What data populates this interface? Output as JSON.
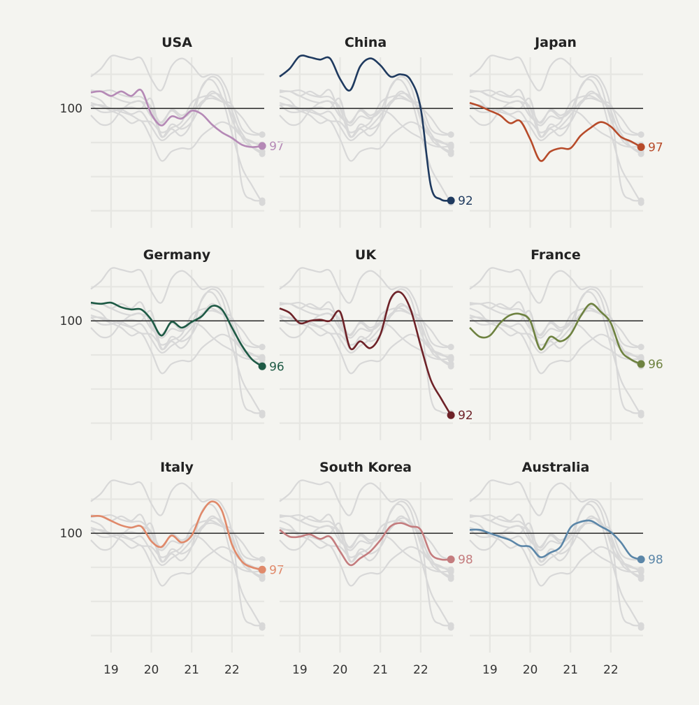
{
  "chart_data": {
    "type": "line",
    "layout": "small-multiples-3x3",
    "title": "",
    "xlabel": "",
    "ylabel": "",
    "x_ticks": [
      "19",
      "20",
      "21",
      "22"
    ],
    "y_reference": 100,
    "y_ticks": [
      "100"
    ],
    "xlim": [
      2018.5,
      2022.8
    ],
    "ylim": [
      89.5,
      104.5
    ],
    "grid": true,
    "background_series_color": "#d8d8d8",
    "x": [
      2018.5,
      2018.75,
      2019.0,
      2019.25,
      2019.5,
      2019.75,
      2020.0,
      2020.25,
      2020.5,
      2020.75,
      2021.0,
      2021.25,
      2021.5,
      2021.75,
      2022.0,
      2022.25,
      2022.5,
      2022.75
    ],
    "series": [
      {
        "name": "USA",
        "color": "#b589b6",
        "end_label": "97",
        "values": [
          101.4,
          101.5,
          101.1,
          101.5,
          101.1,
          101.6,
          99.5,
          98.5,
          99.3,
          99.1,
          99.8,
          99.5,
          98.6,
          97.9,
          97.4,
          96.8,
          96.6,
          96.7
        ]
      },
      {
        "name": "China",
        "color": "#1f3a5f",
        "end_label": "92",
        "values": [
          102.8,
          103.5,
          104.6,
          104.5,
          104.3,
          104.4,
          102.6,
          101.6,
          103.7,
          104.4,
          103.8,
          102.8,
          103.0,
          102.5,
          100.0,
          93.2,
          92.0,
          91.9
        ]
      },
      {
        "name": "Japan",
        "color": "#b74b2a",
        "end_label": "97",
        "values": [
          100.5,
          100.2,
          99.8,
          99.4,
          98.7,
          98.9,
          97.3,
          95.4,
          96.2,
          96.5,
          96.5,
          97.6,
          98.3,
          98.8,
          98.4,
          97.5,
          97.1,
          96.6
        ]
      },
      {
        "name": "Germany",
        "color": "#1e5a45",
        "end_label": "96",
        "values": [
          101.6,
          101.5,
          101.6,
          101.2,
          101.0,
          101.0,
          100.1,
          98.7,
          99.9,
          99.4,
          99.9,
          100.4,
          101.3,
          101.0,
          99.4,
          97.8,
          96.6,
          96.0
        ]
      },
      {
        "name": "UK",
        "color": "#6e2228",
        "end_label": "92",
        "values": [
          101.1,
          100.7,
          99.8,
          100.0,
          100.1,
          100.0,
          100.8,
          97.6,
          98.2,
          97.6,
          98.8,
          101.9,
          102.5,
          101.0,
          97.8,
          94.8,
          93.2,
          91.7
        ]
      },
      {
        "name": "France",
        "color": "#6e8240",
        "end_label": "96",
        "values": [
          99.4,
          98.6,
          98.7,
          99.8,
          100.5,
          100.6,
          100.0,
          97.5,
          98.6,
          98.2,
          98.8,
          100.4,
          101.5,
          100.8,
          99.8,
          97.4,
          96.6,
          96.2
        ]
      },
      {
        "name": "Italy",
        "color": "#e0896a",
        "end_label": "97",
        "values": [
          101.5,
          101.5,
          101.1,
          100.7,
          100.5,
          100.6,
          99.3,
          98.8,
          99.8,
          99.2,
          99.8,
          101.8,
          102.8,
          102.0,
          99.0,
          97.5,
          97.0,
          96.8
        ]
      },
      {
        "name": "South Korea",
        "color": "#c47c7e",
        "end_label": "98",
        "values": [
          100.3,
          99.7,
          99.7,
          99.9,
          99.5,
          99.7,
          98.4,
          97.2,
          97.8,
          98.4,
          99.4,
          100.6,
          100.9,
          100.6,
          100.3,
          98.2,
          97.7,
          97.7
        ]
      },
      {
        "name": "Australia",
        "color": "#5b86a8",
        "end_label": "98",
        "values": [
          100.3,
          100.3,
          100.0,
          99.7,
          99.4,
          98.9,
          98.8,
          97.9,
          98.3,
          98.8,
          100.5,
          101.0,
          101.1,
          100.6,
          100.1,
          99.2,
          98.0,
          97.7
        ]
      }
    ]
  }
}
